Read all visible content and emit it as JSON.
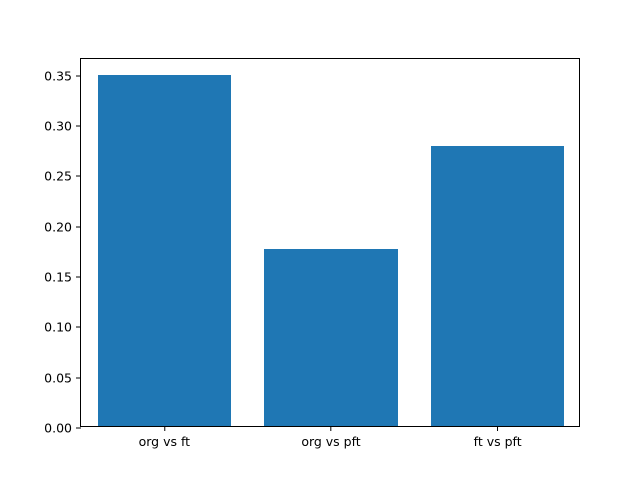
{
  "chart_data": {
    "type": "bar",
    "title": "",
    "xlabel": "",
    "ylabel": "",
    "categories": [
      "org vs ft",
      "org vs pft",
      "ft vs pft"
    ],
    "values": [
      0.349,
      0.176,
      0.278
    ],
    "bar_color": "#1f77b4",
    "ylim": [
      0,
      0.3665
    ],
    "yticks": [
      {
        "value": 0.0,
        "label": "0.00"
      },
      {
        "value": 0.05,
        "label": "0.05"
      },
      {
        "value": 0.1,
        "label": "0.10"
      },
      {
        "value": 0.15,
        "label": "0.15"
      },
      {
        "value": 0.2,
        "label": "0.20"
      },
      {
        "value": 0.25,
        "label": "0.25"
      },
      {
        "value": 0.3,
        "label": "0.30"
      },
      {
        "value": 0.35,
        "label": "0.35"
      }
    ],
    "grid": false,
    "legend": false,
    "bar_width_fraction": 0.8
  }
}
